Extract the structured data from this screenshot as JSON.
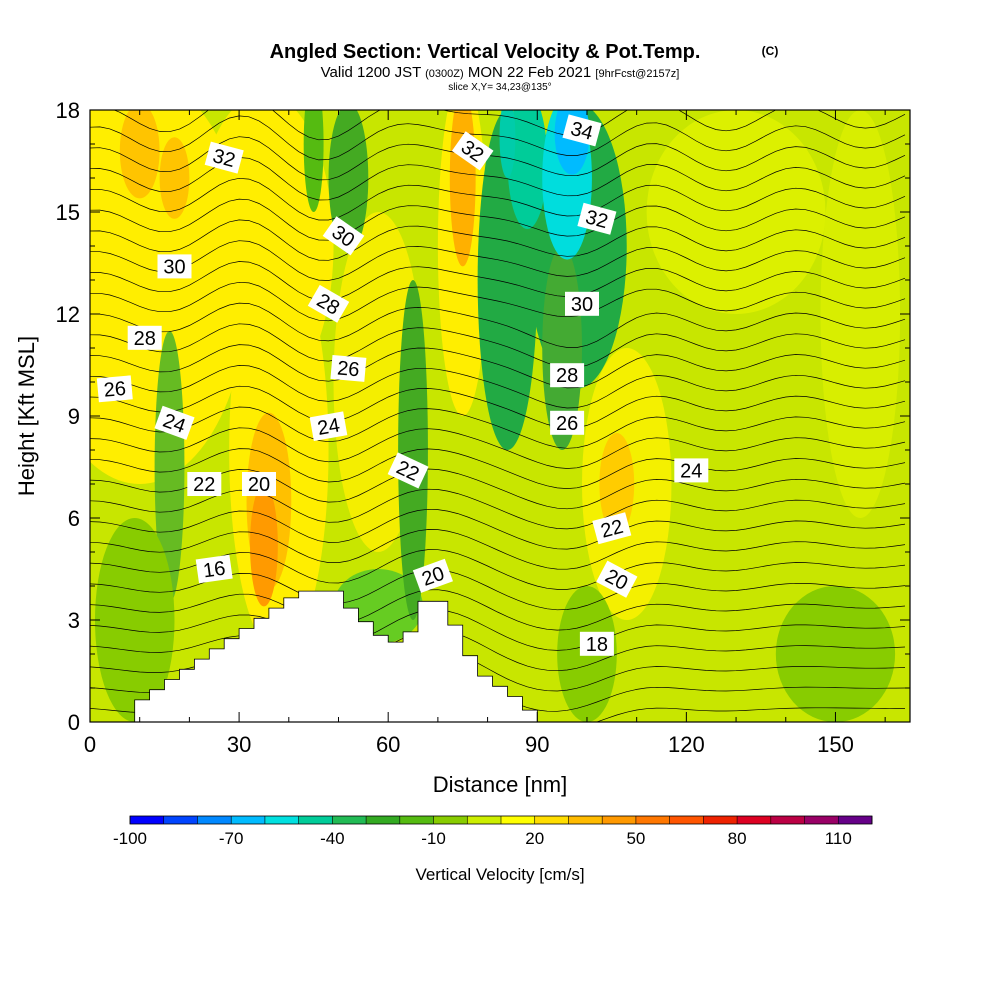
{
  "chart_data": {
    "type": "heatmap",
    "title": "Angled Section: Vertical Velocity & Pot.Temp.",
    "title_unit": "(C)",
    "subtitle_main": "Valid 1200 JST",
    "subtitle_utc": "(0300Z)",
    "subtitle_date": "MON 22 Feb 2021",
    "subtitle_fcst": "[9hrFcst@2157z]",
    "slice_label": "slice X,Y= 34,23@135°",
    "xlabel": "Distance [nm]",
    "ylabel": "Height [Kft MSL]",
    "xlim": [
      0,
      165
    ],
    "ylim": [
      0,
      18
    ],
    "x_ticks": [
      0,
      30,
      60,
      90,
      120,
      150
    ],
    "y_ticks": [
      0,
      3,
      6,
      9,
      12,
      15,
      18
    ],
    "colorbar": {
      "label": "Vertical Velocity [cm/s]",
      "range": [
        -100,
        120
      ],
      "step": 10,
      "tick_values": [
        -100,
        -70,
        -40,
        -10,
        20,
        50,
        80,
        110
      ],
      "colors": [
        "#0000ff",
        "#0044ff",
        "#0088ff",
        "#00bbff",
        "#00e0e0",
        "#00cc99",
        "#22bb55",
        "#33aa22",
        "#55bb11",
        "#88cc00",
        "#ccee00",
        "#ffff00",
        "#ffdd00",
        "#ffbb00",
        "#ff9900",
        "#ff7700",
        "#ff5500",
        "#ee2200",
        "#dd0022",
        "#bb0044",
        "#990066",
        "#660088"
      ]
    },
    "theta_label_values": [
      16,
      18,
      20,
      20,
      20,
      22,
      22,
      22,
      24,
      24,
      24,
      26,
      26,
      26,
      28,
      28,
      28,
      30,
      30,
      30,
      32,
      32,
      32,
      34
    ],
    "terrain": {
      "x": [
        0,
        9,
        9,
        12,
        12,
        15,
        15,
        18,
        18,
        21,
        21,
        24,
        24,
        27,
        27,
        30,
        30,
        33,
        33,
        36,
        36,
        39,
        39,
        42,
        42,
        45,
        45,
        51,
        51,
        54,
        54,
        57,
        57,
        60,
        60,
        63,
        63,
        66,
        66,
        72,
        72,
        75,
        75,
        78,
        78,
        81,
        81,
        84,
        84,
        87,
        87,
        90,
        90,
        165
      ],
      "y": [
        0,
        0,
        0.65,
        0.65,
        0.95,
        0.95,
        1.25,
        1.25,
        1.55,
        1.55,
        1.85,
        1.85,
        2.15,
        2.15,
        2.45,
        2.45,
        2.75,
        2.75,
        3.05,
        3.05,
        3.35,
        3.35,
        3.65,
        3.65,
        3.85,
        3.85,
        3.85,
        3.85,
        3.35,
        3.35,
        2.95,
        2.95,
        2.55,
        2.55,
        2.35,
        2.35,
        2.65,
        2.65,
        3.55,
        3.55,
        2.85,
        2.85,
        1.95,
        1.95,
        1.35,
        1.35,
        1.05,
        1.05,
        0.75,
        0.75,
        0.35,
        0.35,
        0,
        0
      ]
    }
  }
}
